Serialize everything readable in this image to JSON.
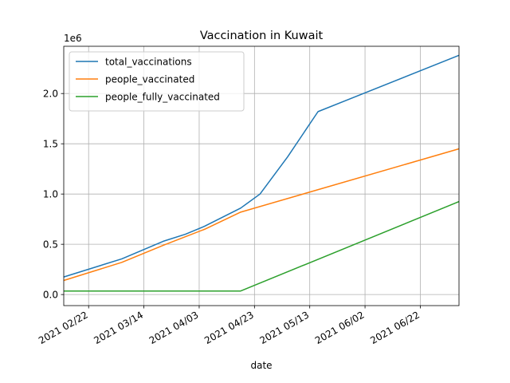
{
  "chart_data": {
    "type": "line",
    "title": "Vaccination in Kuwait",
    "xlabel": "date",
    "ylabel": "",
    "y_offset_label": "1e6",
    "xlim": [
      "2021-02-13",
      "2021-07-06"
    ],
    "ylim": [
      -110000,
      2470000
    ],
    "grid": true,
    "legend_position": "top-left",
    "x_ticks": [
      {
        "date": "2021-02-22",
        "label": "2021 02/22"
      },
      {
        "date": "2021-03-14",
        "label": "2021 03/14"
      },
      {
        "date": "2021-04-03",
        "label": "2021 04/03"
      },
      {
        "date": "2021-04-23",
        "label": "2021 04/23"
      },
      {
        "date": "2021-05-13",
        "label": "2021 05/13"
      },
      {
        "date": "2021-06-02",
        "label": "2021 06/02"
      },
      {
        "date": "2021-06-22",
        "label": "2021 06/22"
      }
    ],
    "y_ticks": [
      {
        "value": 0,
        "label": "0.0"
      },
      {
        "value": 500000,
        "label": "0.5"
      },
      {
        "value": 1000000,
        "label": "1.0"
      },
      {
        "value": 1500000,
        "label": "1.5"
      },
      {
        "value": 2000000,
        "label": "2.0"
      }
    ],
    "series": [
      {
        "name": "total_vaccinations",
        "color": "#1f77b4",
        "points": [
          [
            "2021-02-13",
            175000
          ],
          [
            "2021-03-06",
            355000
          ],
          [
            "2021-03-21",
            530000
          ],
          [
            "2021-03-29",
            600000
          ],
          [
            "2021-04-05",
            680000
          ],
          [
            "2021-04-18",
            860000
          ],
          [
            "2021-04-25",
            1000000
          ],
          [
            "2021-05-05",
            1370000
          ],
          [
            "2021-05-16",
            1820000
          ],
          [
            "2021-07-06",
            2380000
          ]
        ]
      },
      {
        "name": "people_vaccinated",
        "color": "#ff7f0e",
        "points": [
          [
            "2021-02-13",
            140000
          ],
          [
            "2021-03-06",
            320000
          ],
          [
            "2021-03-21",
            490000
          ],
          [
            "2021-04-05",
            650000
          ],
          [
            "2021-04-18",
            820000
          ],
          [
            "2021-07-06",
            1450000
          ]
        ]
      },
      {
        "name": "people_fully_vaccinated",
        "color": "#2ca02c",
        "points": [
          [
            "2021-02-13",
            35000
          ],
          [
            "2021-04-18",
            35000
          ],
          [
            "2021-07-06",
            925000
          ]
        ]
      }
    ]
  }
}
